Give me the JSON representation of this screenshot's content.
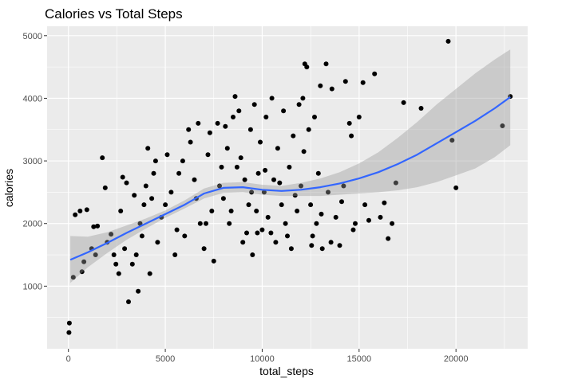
{
  "chart_data": {
    "type": "scatter",
    "title": "Calories vs Total Steps",
    "xlabel": "total_steps",
    "ylabel": "calories",
    "xlim": [
      -1100,
      23700
    ],
    "ylim": [
      0,
      5150
    ],
    "x_ticks": [
      0,
      5000,
      10000,
      15000,
      20000
    ],
    "x_tick_labels": [
      "0",
      "5000",
      "10000",
      "15000",
      "20000"
    ],
    "y_ticks": [
      1000,
      2000,
      3000,
      4000,
      5000
    ],
    "y_tick_labels": [
      "1000",
      "2000",
      "3000",
      "4000",
      "5000"
    ],
    "grid": true,
    "colors": {
      "panel": "#ebebeb",
      "grid": "#ffffff",
      "points": "#000000",
      "smooth": "#3366ff",
      "band": "#999999"
    },
    "smooth": {
      "x": [
        100,
        1000,
        2000,
        3000,
        4000,
        5000,
        6000,
        7000,
        8000,
        9000,
        10000,
        11000,
        12000,
        13000,
        14000,
        15000,
        16000,
        17000,
        18000,
        19000,
        20000,
        21000,
        22000,
        22800
      ],
      "y": [
        1420,
        1540,
        1690,
        1850,
        2000,
        2150,
        2300,
        2480,
        2570,
        2580,
        2540,
        2520,
        2540,
        2580,
        2640,
        2720,
        2820,
        2950,
        3100,
        3280,
        3460,
        3640,
        3840,
        4020
      ],
      "upper": [
        1800,
        1790,
        1860,
        1970,
        2080,
        2210,
        2370,
        2560,
        2650,
        2660,
        2620,
        2600,
        2650,
        2720,
        2820,
        2960,
        3140,
        3370,
        3620,
        3900,
        4150,
        4400,
        4620,
        4780
      ],
      "lower": [
        1050,
        1300,
        1530,
        1740,
        1920,
        2090,
        2240,
        2400,
        2490,
        2500,
        2460,
        2440,
        2440,
        2440,
        2460,
        2480,
        2500,
        2530,
        2580,
        2660,
        2770,
        2880,
        3060,
        3250
      ]
    },
    "points": [
      [
        50,
        410
      ],
      [
        30,
        260
      ],
      [
        250,
        1140
      ],
      [
        700,
        1230
      ],
      [
        350,
        2140
      ],
      [
        600,
        2200
      ],
      [
        950,
        2220
      ],
      [
        1200,
        1600
      ],
      [
        1400,
        1500
      ],
      [
        800,
        1390
      ],
      [
        1500,
        1960
      ],
      [
        1750,
        3050
      ],
      [
        1900,
        2570
      ],
      [
        2200,
        1830
      ],
      [
        2350,
        1500
      ],
      [
        2450,
        1350
      ],
      [
        2600,
        1200
      ],
      [
        2800,
        2740
      ],
      [
        3000,
        2650
      ],
      [
        3100,
        750
      ],
      [
        3300,
        1350
      ],
      [
        3500,
        1500
      ],
      [
        3600,
        920
      ],
      [
        3700,
        2000
      ],
      [
        3900,
        2300
      ],
      [
        4000,
        2600
      ],
      [
        4200,
        1200
      ],
      [
        4400,
        2800
      ],
      [
        4500,
        3000
      ],
      [
        4600,
        1700
      ],
      [
        4800,
        2100
      ],
      [
        5000,
        2300
      ],
      [
        5100,
        3100
      ],
      [
        5300,
        2500
      ],
      [
        5500,
        1500
      ],
      [
        5700,
        2800
      ],
      [
        5900,
        3000
      ],
      [
        6000,
        1800
      ],
      [
        6200,
        3500
      ],
      [
        6300,
        3300
      ],
      [
        6500,
        2700
      ],
      [
        6700,
        3600
      ],
      [
        6800,
        2000
      ],
      [
        7000,
        1600
      ],
      [
        7200,
        3100
      ],
      [
        7400,
        2200
      ],
      [
        7500,
        1400
      ],
      [
        7700,
        3600
      ],
      [
        7800,
        2600
      ],
      [
        8000,
        2400
      ],
      [
        8200,
        3200
      ],
      [
        8300,
        2000
      ],
      [
        8500,
        3700
      ],
      [
        8600,
        4030
      ],
      [
        8700,
        2900
      ],
      [
        8800,
        3800
      ],
      [
        9000,
        1700
      ],
      [
        9100,
        2700
      ],
      [
        9300,
        2300
      ],
      [
        9400,
        3500
      ],
      [
        9500,
        1500
      ],
      [
        9600,
        3900
      ],
      [
        9700,
        2200
      ],
      [
        9800,
        2800
      ],
      [
        9900,
        3300
      ],
      [
        10000,
        1900
      ],
      [
        10100,
        2500
      ],
      [
        10200,
        3700
      ],
      [
        10300,
        2100
      ],
      [
        10500,
        4000
      ],
      [
        10600,
        2700
      ],
      [
        10700,
        1700
      ],
      [
        10800,
        3200
      ],
      [
        11000,
        2300
      ],
      [
        11100,
        3800
      ],
      [
        11200,
        2000
      ],
      [
        11400,
        2900
      ],
      [
        11500,
        1600
      ],
      [
        11600,
        3400
      ],
      [
        11800,
        2200
      ],
      [
        11900,
        3900
      ],
      [
        12000,
        2600
      ],
      [
        12100,
        4000
      ],
      [
        12200,
        4550
      ],
      [
        12300,
        4500
      ],
      [
        12400,
        3500
      ],
      [
        12500,
        2300
      ],
      [
        12600,
        1800
      ],
      [
        12700,
        3700
      ],
      [
        12800,
        2000
      ],
      [
        12900,
        2800
      ],
      [
        13000,
        4200
      ],
      [
        13100,
        1600
      ],
      [
        13300,
        4550
      ],
      [
        13400,
        2500
      ],
      [
        13600,
        4150
      ],
      [
        13800,
        2100
      ],
      [
        14000,
        1650
      ],
      [
        14200,
        2600
      ],
      [
        14300,
        4270
      ],
      [
        14500,
        3600
      ],
      [
        14600,
        3400
      ],
      [
        14800,
        2000
      ],
      [
        15000,
        3700
      ],
      [
        15200,
        4250
      ],
      [
        15300,
        2300
      ],
      [
        15500,
        2050
      ],
      [
        15800,
        4390
      ],
      [
        16100,
        2100
      ],
      [
        16300,
        2330
      ],
      [
        16500,
        1760
      ],
      [
        16700,
        2000
      ],
      [
        16900,
        2650
      ],
      [
        17300,
        3930
      ],
      [
        18200,
        3840
      ],
      [
        19600,
        4910
      ],
      [
        19800,
        3330
      ],
      [
        20000,
        2570
      ],
      [
        22400,
        3560
      ],
      [
        22800,
        4030
      ],
      [
        4100,
        3200
      ],
      [
        3800,
        1800
      ],
      [
        2700,
        2200
      ],
      [
        5600,
        1900
      ],
      [
        6600,
        2400
      ],
      [
        7100,
        2000
      ],
      [
        7300,
        3450
      ],
      [
        7900,
        2900
      ],
      [
        8100,
        3550
      ],
      [
        8400,
        2200
      ],
      [
        8900,
        3050
      ],
      [
        9200,
        1850
      ],
      [
        9450,
        2500
      ],
      [
        9750,
        1850
      ],
      [
        10150,
        2850
      ],
      [
        10450,
        1850
      ],
      [
        10900,
        2650
      ],
      [
        11300,
        1800
      ],
      [
        11700,
        2450
      ],
      [
        12150,
        3150
      ],
      [
        12550,
        1650
      ],
      [
        13050,
        2150
      ],
      [
        13550,
        1700
      ],
      [
        14100,
        2350
      ],
      [
        14700,
        1900
      ],
      [
        1300,
        1950
      ],
      [
        2000,
        1700
      ],
      [
        2900,
        1600
      ],
      [
        3400,
        2450
      ],
      [
        4300,
        2400
      ]
    ]
  }
}
